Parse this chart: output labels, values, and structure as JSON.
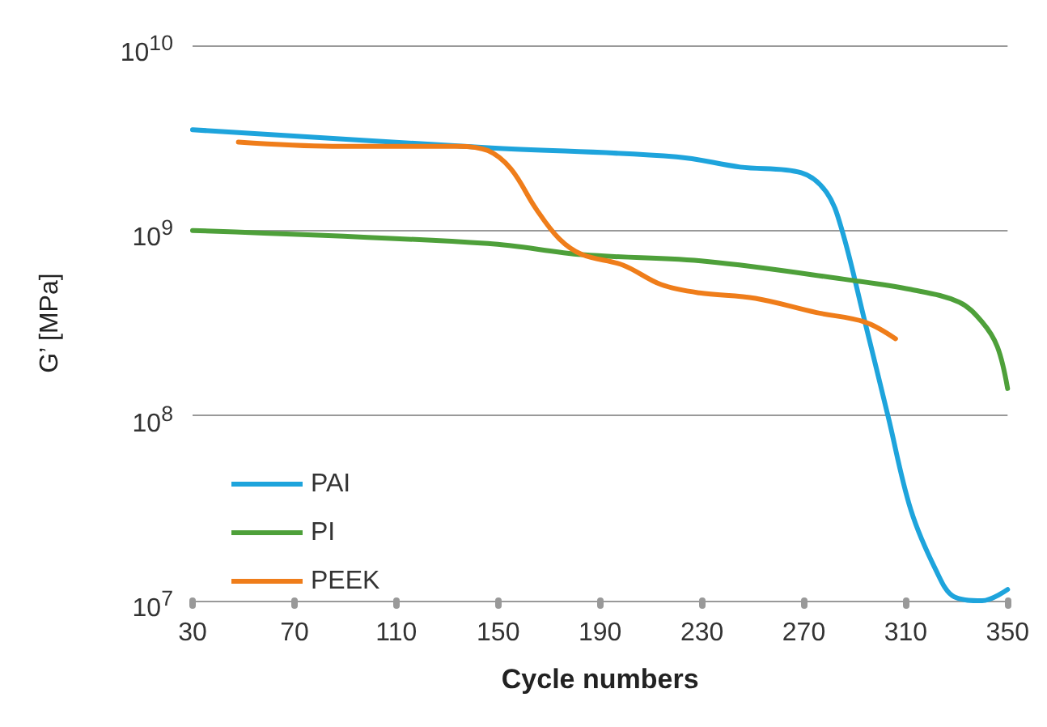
{
  "chart_data": {
    "type": "line",
    "xlabel": "Cycle numbers",
    "ylabel": "G’ [MPa]",
    "log": "y",
    "grid": "y",
    "legend": "bottom left",
    "marker": "none",
    "line_style": "solid",
    "xlim": [
      30,
      350
    ],
    "xticks": [
      30,
      70,
      110,
      150,
      190,
      230,
      270,
      310,
      350
    ],
    "ylim": [
      10000000,
      10000000000
    ],
    "yticks": [
      {
        "value": 10000000,
        "label": "10$^{7}$"
      },
      {
        "value": 100000000,
        "label": "10$^{8}$"
      },
      {
        "value": 1000000000,
        "label": "10$^{9}$"
      },
      {
        "value": 10000000000,
        "label": "10$^{10}$"
      }
    ],
    "series": [
      {
        "name": "PAI",
        "color": "#1ea4dc",
        "x": [
          30,
          146,
          220,
          245,
          269,
          279,
          285,
          294,
          303,
          312,
          322,
          329,
          340,
          350
        ],
        "values": [
          3500000000,
          2800000000,
          2500000000,
          2200000000,
          2050000000,
          1600000000,
          1000000000,
          320000000,
          100000000,
          31000000,
          14500000,
          10500000,
          10000000,
          11500000
        ]
      },
      {
        "name": "PI",
        "color": "#4ea03a",
        "x": [
          30,
          146,
          183,
          232,
          288,
          312,
          331,
          340,
          346,
          350
        ],
        "values": [
          1000000000,
          850000000,
          740000000,
          680000000,
          540000000,
          480000000,
          410000000,
          320000000,
          235000000,
          140000000
        ]
      },
      {
        "name": "PEEK",
        "color": "#ef7d1a",
        "x": [
          48,
          85,
          134,
          146,
          155,
          165,
          174,
          183,
          199,
          214,
          229,
          251,
          275,
          294,
          306
        ],
        "values": [
          3000000000,
          2850000000,
          2850000000,
          2700000000,
          2150000000,
          1300000000,
          900000000,
          740000000,
          650000000,
          510000000,
          460000000,
          430000000,
          360000000,
          320000000,
          260000000
        ]
      }
    ]
  }
}
